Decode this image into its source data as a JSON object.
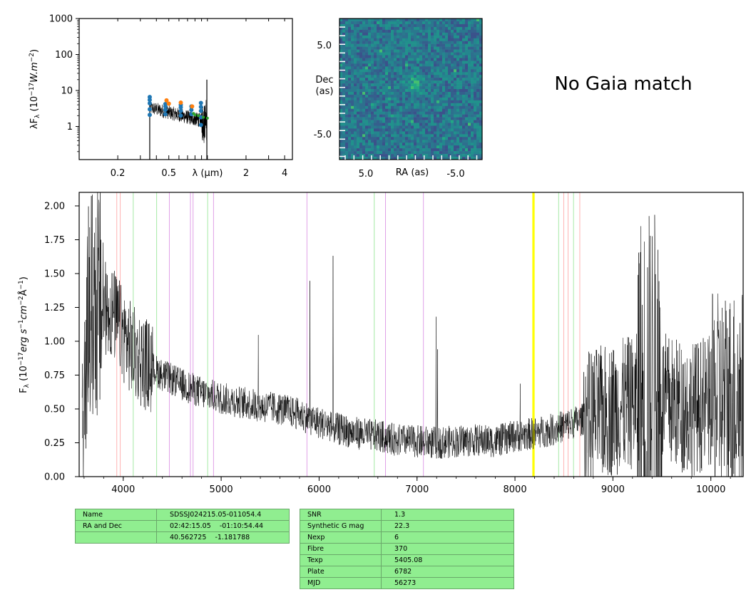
{
  "sed": {
    "ylabel": "λF_λ (10^-17 W.m^-2)",
    "xlabel": "λ (μm)",
    "yticks": [
      "1000",
      "100",
      "10",
      "1"
    ],
    "xticks": [
      "0.2",
      "0.5",
      "2",
      "4"
    ],
    "xlim_um": [
      0.1,
      4.6
    ],
    "ylim": [
      0.12,
      1000
    ],
    "points": [
      {
        "x": 0.355,
        "y": 2.1,
        "color": "#1f77b4"
      },
      {
        "x": 0.355,
        "y": 3.0,
        "color": "#1f77b4"
      },
      {
        "x": 0.355,
        "y": 4.4,
        "color": "#1f77b4"
      },
      {
        "x": 0.355,
        "y": 5.5,
        "color": "#1f77b4"
      },
      {
        "x": 0.355,
        "y": 6.6,
        "color": "#1f77b4"
      },
      {
        "x": 0.47,
        "y": 2.2,
        "color": "#1f77b4"
      },
      {
        "x": 0.47,
        "y": 2.9,
        "color": "#1f77b4"
      },
      {
        "x": 0.47,
        "y": 3.6,
        "color": "#1f77b4"
      },
      {
        "x": 0.47,
        "y": 4.2,
        "color": "#1f77b4"
      },
      {
        "x": 0.62,
        "y": 2.0,
        "color": "#1f77b4"
      },
      {
        "x": 0.62,
        "y": 2.7,
        "color": "#1f77b4"
      },
      {
        "x": 0.62,
        "y": 3.4,
        "color": "#1f77b4"
      },
      {
        "x": 0.62,
        "y": 4.0,
        "color": "#1f77b4"
      },
      {
        "x": 0.75,
        "y": 2.2,
        "color": "#1f77b4"
      },
      {
        "x": 0.75,
        "y": 2.9,
        "color": "#1f77b4"
      },
      {
        "x": 0.75,
        "y": 3.6,
        "color": "#1f77b4"
      },
      {
        "x": 0.89,
        "y": 1.1,
        "color": "#1f77b4"
      },
      {
        "x": 0.89,
        "y": 1.8,
        "color": "#1f77b4"
      },
      {
        "x": 0.89,
        "y": 2.7,
        "color": "#1f77b4"
      },
      {
        "x": 0.89,
        "y": 3.5,
        "color": "#1f77b4"
      },
      {
        "x": 0.89,
        "y": 4.5,
        "color": "#1f77b4"
      },
      {
        "x": 0.48,
        "y": 5.3,
        "color": "#ff7f0e"
      },
      {
        "x": 0.62,
        "y": 4.6,
        "color": "#ff7f0e"
      },
      {
        "x": 0.76,
        "y": 3.6,
        "color": "#ff7f0e"
      },
      {
        "x": 0.5,
        "y": 4.3,
        "color": "#ff7f0e"
      },
      {
        "x": 0.78,
        "y": 2.3,
        "color": "#2ca02c"
      },
      {
        "x": 0.8,
        "y": 2.1,
        "color": "#2ca02c"
      },
      {
        "x": 0.85,
        "y": 2.0,
        "color": "#2ca02c"
      },
      {
        "x": 0.93,
        "y": 1.8,
        "color": "#2ca02c"
      },
      {
        "x": 1.0,
        "y": 1.7,
        "color": "#2ca02c"
      }
    ]
  },
  "image": {
    "xlabel": "RA (as)",
    "ylabel_line1": "Dec",
    "ylabel_line2": "(as)",
    "xticks": [
      "5.0",
      "-5.0"
    ],
    "yticks": [
      "5.0",
      "-5.0"
    ]
  },
  "gaia_text": "No Gaia match",
  "chart_data": {
    "type": "line",
    "ylabel": "F_λ (10^-17 erg s^-1 cm^-2 Å^-1)",
    "xlim": [
      3550,
      10330
    ],
    "ylim": [
      0.0,
      2.1
    ],
    "xticks": [
      "4000",
      "5000",
      "6000",
      "7000",
      "8000",
      "9000",
      "10000"
    ],
    "yticks": [
      "0.00",
      "0.25",
      "0.50",
      "0.75",
      "1.00",
      "1.25",
      "1.50",
      "1.75",
      "2.00"
    ],
    "continuum": [
      {
        "x": 3600,
        "y": 1.05
      },
      {
        "x": 3700,
        "y": 1.3
      },
      {
        "x": 3800,
        "y": 1.25
      },
      {
        "x": 3900,
        "y": 1.2
      },
      {
        "x": 4000,
        "y": 1.05
      },
      {
        "x": 4100,
        "y": 0.92
      },
      {
        "x": 4200,
        "y": 0.85
      },
      {
        "x": 4400,
        "y": 0.75
      },
      {
        "x": 4600,
        "y": 0.68
      },
      {
        "x": 4800,
        "y": 0.62
      },
      {
        "x": 5000,
        "y": 0.58
      },
      {
        "x": 5200,
        "y": 0.55
      },
      {
        "x": 5400,
        "y": 0.52
      },
      {
        "x": 5600,
        "y": 0.5
      },
      {
        "x": 5800,
        "y": 0.46
      },
      {
        "x": 6000,
        "y": 0.4
      },
      {
        "x": 6200,
        "y": 0.35
      },
      {
        "x": 6400,
        "y": 0.32
      },
      {
        "x": 6600,
        "y": 0.3
      },
      {
        "x": 6800,
        "y": 0.27
      },
      {
        "x": 7000,
        "y": 0.26
      },
      {
        "x": 7200,
        "y": 0.25
      },
      {
        "x": 7400,
        "y": 0.26
      },
      {
        "x": 7600,
        "y": 0.27
      },
      {
        "x": 7800,
        "y": 0.26
      },
      {
        "x": 8000,
        "y": 0.3
      },
      {
        "x": 8200,
        "y": 0.32
      },
      {
        "x": 8400,
        "y": 0.35
      },
      {
        "x": 8600,
        "y": 0.4
      },
      {
        "x": 8800,
        "y": 0.45
      },
      {
        "x": 9000,
        "y": 0.5
      },
      {
        "x": 9200,
        "y": 0.55
      },
      {
        "x": 9400,
        "y": 0.6
      },
      {
        "x": 9600,
        "y": 0.55
      },
      {
        "x": 9800,
        "y": 0.5
      },
      {
        "x": 10000,
        "y": 0.55
      },
      {
        "x": 10200,
        "y": 0.6
      },
      {
        "x": 10330,
        "y": 0.6
      }
    ],
    "lines": [
      {
        "x": 3934,
        "color": "#ffb3b3"
      },
      {
        "x": 3969,
        "color": "#ffb3b3"
      },
      {
        "x": 4102,
        "color": "#a6eaa6"
      },
      {
        "x": 4341,
        "color": "#a6eaa6"
      },
      {
        "x": 4862,
        "color": "#a6eaa6"
      },
      {
        "x": 6563,
        "color": "#a6eaa6"
      },
      {
        "x": 4471,
        "color": "#e0a0e8"
      },
      {
        "x": 4686,
        "color": "#e0a0e8"
      },
      {
        "x": 4713,
        "color": "#e0a0e8"
      },
      {
        "x": 4922,
        "color": "#e0a0e8"
      },
      {
        "x": 5876,
        "color": "#e0a0e8"
      },
      {
        "x": 6678,
        "color": "#e0a0e8"
      },
      {
        "x": 7065,
        "color": "#e0a0e8"
      },
      {
        "x": 8183,
        "color": "#ffff00"
      },
      {
        "x": 8195,
        "color": "#ffff00"
      },
      {
        "x": 8446,
        "color": "#a6eaa6"
      },
      {
        "x": 8498,
        "color": "#ffb3b3"
      },
      {
        "x": 8542,
        "color": "#ffb3b3"
      },
      {
        "x": 8598,
        "color": "#a6eaa6"
      },
      {
        "x": 8662,
        "color": "#ffb3b3"
      }
    ]
  },
  "table_left": [
    [
      "Name",
      "SDSSJ024215.05-011054.4"
    ],
    [
      "RA and Dec",
      "02:42:15.05    -01:10:54.44"
    ],
    [
      "",
      "40.562725    -1.181788"
    ]
  ],
  "table_right": [
    [
      "SNR",
      "1.3"
    ],
    [
      "Synthetic G mag",
      "22.3"
    ],
    [
      "Nexp",
      "6"
    ],
    [
      "Fibre",
      "370"
    ],
    [
      "Texp",
      "5405.08"
    ],
    [
      "Plate",
      "6782"
    ],
    [
      "MJD",
      "56273"
    ]
  ]
}
